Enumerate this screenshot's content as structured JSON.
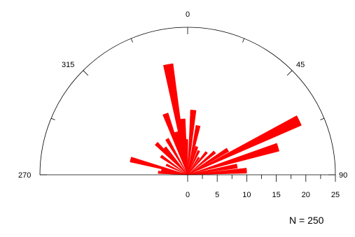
{
  "chart_data": {
    "type": "rose",
    "sector": "half-circle, upper semicircle from 270 through 0 to 90",
    "angle_labels": [
      "270",
      "315",
      "0",
      "45",
      "90"
    ],
    "radial_tick_labels": [
      "0",
      "5",
      "10",
      "15",
      "20",
      "25"
    ],
    "radial_max": 25,
    "bar_color": "#ff0000",
    "petals": [
      {
        "azimuth": 350,
        "length": 19.0
      },
      {
        "azimuth": 355,
        "length": 9.5
      },
      {
        "azimuth": 340,
        "length": 11.0
      },
      {
        "azimuth": 345,
        "length": 7.5
      },
      {
        "azimuth": 358,
        "length": 6.0
      },
      {
        "azimuth": 5,
        "length": 11.0
      },
      {
        "azimuth": 12,
        "length": 8.5
      },
      {
        "azimuth": 18,
        "length": 5.0
      },
      {
        "azimuth": 25,
        "length": 4.5
      },
      {
        "azimuth": 330,
        "length": 7.0
      },
      {
        "azimuth": 320,
        "length": 6.0
      },
      {
        "azimuth": 315,
        "length": 7.5
      },
      {
        "azimuth": 305,
        "length": 5.5
      },
      {
        "azimuth": 295,
        "length": 4.0
      },
      {
        "azimuth": 285,
        "length": 10.0
      },
      {
        "azimuth": 280,
        "length": 4.5
      },
      {
        "azimuth": 275,
        "length": 5.0
      },
      {
        "azimuth": 64,
        "length": 21.0
      },
      {
        "azimuth": 73,
        "length": 16.0
      },
      {
        "azimuth": 58,
        "length": 8.0
      },
      {
        "azimuth": 50,
        "length": 6.0
      },
      {
        "azimuth": 40,
        "length": 5.0
      },
      {
        "azimuth": 80,
        "length": 8.5
      },
      {
        "azimuth": 86,
        "length": 10.0
      },
      {
        "azimuth": 33,
        "length": 3.5
      }
    ],
    "annotation": "N = 250"
  }
}
